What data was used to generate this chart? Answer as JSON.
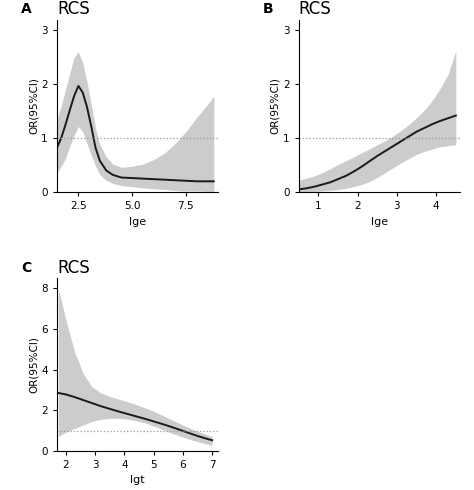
{
  "panel_A": {
    "title": "RCS",
    "xlabel": "lge",
    "ylabel": "OR(95%CI)",
    "xlim": [
      1.5,
      9.0
    ],
    "ylim": [
      0,
      3.2
    ],
    "xticks": [
      2.5,
      5.0,
      7.5
    ],
    "yticks": [
      0,
      1,
      2,
      3
    ],
    "hline": 1.0,
    "x": [
      1.5,
      1.7,
      1.9,
      2.1,
      2.3,
      2.5,
      2.7,
      2.9,
      3.1,
      3.3,
      3.5,
      3.8,
      4.1,
      4.5,
      5.0,
      5.5,
      6.0,
      6.5,
      7.0,
      7.5,
      8.0,
      8.5,
      8.8
    ],
    "y": [
      0.82,
      1.0,
      1.25,
      1.52,
      1.78,
      1.97,
      1.85,
      1.58,
      1.22,
      0.82,
      0.58,
      0.4,
      0.32,
      0.27,
      0.26,
      0.25,
      0.24,
      0.23,
      0.22,
      0.21,
      0.2,
      0.2,
      0.2
    ],
    "y_upper": [
      1.35,
      1.6,
      1.9,
      2.2,
      2.5,
      2.6,
      2.4,
      2.05,
      1.62,
      1.18,
      0.88,
      0.65,
      0.52,
      0.46,
      0.48,
      0.52,
      0.6,
      0.72,
      0.9,
      1.12,
      1.38,
      1.62,
      1.78
    ],
    "y_lower": [
      0.35,
      0.48,
      0.62,
      0.85,
      1.05,
      1.22,
      1.12,
      0.9,
      0.68,
      0.48,
      0.32,
      0.22,
      0.16,
      0.12,
      0.1,
      0.08,
      0.06,
      0.05,
      0.03,
      0.02,
      0.02,
      0.01,
      0.01
    ]
  },
  "panel_B": {
    "title": "RCS",
    "xlabel": "lge",
    "ylabel": "OR(95%CI)",
    "xlim": [
      0.5,
      4.6
    ],
    "ylim": [
      0,
      3.2
    ],
    "xticks": [
      1,
      2,
      3,
      4
    ],
    "yticks": [
      0,
      1,
      2,
      3
    ],
    "hline": 1.0,
    "x": [
      0.5,
      0.7,
      0.9,
      1.1,
      1.3,
      1.5,
      1.7,
      1.9,
      2.1,
      2.3,
      2.5,
      2.7,
      2.9,
      3.1,
      3.3,
      3.5,
      3.7,
      3.9,
      4.1,
      4.3,
      4.5
    ],
    "y": [
      0.05,
      0.07,
      0.1,
      0.14,
      0.18,
      0.24,
      0.3,
      0.38,
      0.47,
      0.57,
      0.67,
      0.76,
      0.85,
      0.94,
      1.03,
      1.12,
      1.19,
      1.26,
      1.32,
      1.37,
      1.42
    ],
    "y_upper": [
      0.22,
      0.26,
      0.3,
      0.36,
      0.43,
      0.51,
      0.58,
      0.65,
      0.73,
      0.8,
      0.88,
      0.95,
      1.04,
      1.14,
      1.25,
      1.38,
      1.52,
      1.7,
      1.92,
      2.18,
      2.62
    ],
    "y_lower": [
      0.005,
      0.008,
      0.012,
      0.02,
      0.03,
      0.048,
      0.07,
      0.1,
      0.14,
      0.195,
      0.27,
      0.36,
      0.45,
      0.54,
      0.62,
      0.7,
      0.755,
      0.8,
      0.84,
      0.86,
      0.88
    ]
  },
  "panel_C": {
    "title": "RCS",
    "xlabel": "lgt",
    "ylabel": "OR(95%CI)",
    "xlim": [
      1.7,
      7.2
    ],
    "ylim": [
      0,
      8.5
    ],
    "xticks": [
      2,
      3,
      4,
      5,
      6,
      7
    ],
    "yticks": [
      0,
      2,
      4,
      6,
      8
    ],
    "hline": 1.0,
    "x": [
      1.75,
      2.0,
      2.3,
      2.6,
      2.9,
      3.2,
      3.5,
      3.8,
      4.1,
      4.4,
      4.7,
      5.0,
      5.3,
      5.6,
      5.9,
      6.2,
      6.5,
      6.8,
      7.0
    ],
    "y": [
      2.85,
      2.78,
      2.65,
      2.5,
      2.35,
      2.2,
      2.07,
      1.94,
      1.82,
      1.7,
      1.58,
      1.45,
      1.32,
      1.18,
      1.03,
      0.88,
      0.73,
      0.6,
      0.52
    ],
    "y_upper": [
      8.0,
      6.5,
      4.9,
      3.8,
      3.15,
      2.85,
      2.68,
      2.55,
      2.42,
      2.28,
      2.12,
      1.95,
      1.75,
      1.54,
      1.34,
      1.14,
      0.96,
      0.8,
      0.7
    ],
    "y_lower": [
      0.7,
      0.92,
      1.1,
      1.28,
      1.45,
      1.55,
      1.6,
      1.6,
      1.56,
      1.48,
      1.38,
      1.22,
      1.05,
      0.88,
      0.72,
      0.58,
      0.45,
      0.34,
      0.27
    ]
  },
  "bg_color": "#ffffff",
  "line_color": "#1a1a1a",
  "ci_color": "#cccccc",
  "hline_color": "#999999"
}
